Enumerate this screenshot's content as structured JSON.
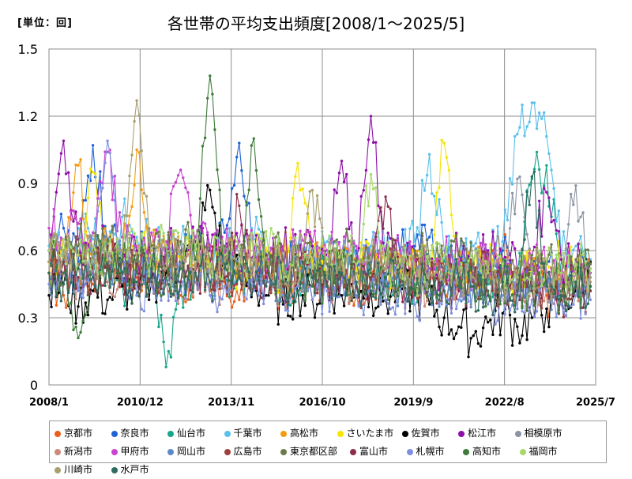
{
  "header": {
    "unit_label": "[単位：回]",
    "title": "各世帯の平均支出頻度[2008/1～2025/5]"
  },
  "chart_data": {
    "type": "line",
    "title": "各世帯の平均支出頻度[2008/1～2025/5]",
    "unit": "回",
    "ylim": [
      0,
      1.5
    ],
    "y_ticks": [
      "0",
      "0.3",
      "0.6",
      "0.9",
      "1.2",
      "1.5"
    ],
    "x_range": [
      "2008/1",
      "2025/7"
    ],
    "x_ticks": [
      "2008/1",
      "2010/12",
      "2013/11",
      "2016/10",
      "2019/9",
      "2022/8",
      "2025/7"
    ],
    "grid": true,
    "legend_position": "bottom",
    "series": [
      {
        "name": "京都市",
        "color": "#e8601c",
        "values": [
          0.5,
          0.4,
          0.55,
          0.45,
          0.6,
          0.5,
          0.48,
          0.52,
          0.45,
          0.4,
          0.5,
          0.42,
          0.46,
          0.38,
          0.55,
          0.5,
          0.4,
          0.48,
          0.52,
          0.44,
          0.55,
          0.4,
          0.5,
          0.45,
          0.52,
          0.58,
          0.48,
          0.42,
          0.5,
          0.46,
          0.55,
          0.6,
          0.45,
          0.5,
          0.4,
          0.48,
          0.52,
          0.44
        ]
      },
      {
        "name": "奈良市",
        "color": "#1f62d6",
        "values": [
          0.6,
          0.7,
          0.55,
          1.07,
          0.65,
          0.58,
          0.62,
          0.5,
          0.56,
          0.6,
          0.52,
          0.55,
          0.68,
          1.08,
          0.6,
          0.54,
          0.5,
          0.56,
          0.62,
          0.48,
          0.52,
          0.6,
          0.55,
          0.5,
          0.58,
          0.62,
          0.66,
          0.5,
          0.55,
          0.48,
          0.52,
          0.6,
          0.45,
          0.5,
          0.56,
          0.48,
          0.52,
          0.5
        ]
      },
      {
        "name": "仙台市",
        "color": "#17a589",
        "values": [
          0.5,
          0.55,
          0.48,
          0.6,
          0.52,
          0.45,
          0.5,
          0.58,
          0.08,
          0.44,
          0.5,
          0.55,
          0.48,
          0.52,
          0.46,
          0.5,
          0.44,
          0.48,
          0.52,
          0.5,
          0.46,
          0.55,
          0.5,
          0.48,
          0.52,
          0.45,
          0.5,
          0.55,
          0.48,
          0.52,
          0.45,
          0.5,
          0.48,
          0.92,
          0.98,
          0.5,
          0.46,
          0.52
        ]
      },
      {
        "name": "千葉市",
        "color": "#5bc0eb",
        "values": [
          0.62,
          0.58,
          0.7,
          0.65,
          0.6,
          0.75,
          0.66,
          0.62,
          0.58,
          0.64,
          0.6,
          0.55,
          0.62,
          0.58,
          0.65,
          0.6,
          0.56,
          0.62,
          0.58,
          0.64,
          0.6,
          0.55,
          0.62,
          0.6,
          0.58,
          0.64,
          1.03,
          0.6,
          0.56,
          0.62,
          0.58,
          0.64,
          1.12,
          1.26,
          1.11,
          0.58,
          0.62,
          0.56
        ]
      },
      {
        "name": "高松市",
        "color": "#f39c12",
        "values": [
          0.55,
          0.6,
          0.98,
          0.58,
          0.62,
          0.56,
          1.05,
          0.6,
          0.55,
          0.58,
          0.52,
          0.56,
          0.6,
          0.54,
          0.58,
          0.52,
          0.56,
          0.5,
          0.54,
          0.58,
          0.52,
          0.56,
          0.5,
          0.54,
          0.58,
          0.52,
          0.48,
          0.52,
          0.56,
          0.5,
          0.54,
          0.48,
          0.52,
          0.56,
          0.5,
          0.48,
          0.52,
          0.5
        ]
      },
      {
        "name": "さいたま市",
        "color": "#f7e400",
        "values": [
          0.55,
          0.6,
          0.52,
          0.95,
          0.58,
          0.54,
          0.6,
          0.56,
          0.52,
          0.58,
          0.54,
          0.5,
          0.56,
          0.52,
          0.58,
          0.54,
          0.5,
          0.99,
          0.54,
          0.5,
          0.56,
          0.52,
          0.58,
          0.54,
          0.5,
          0.56,
          0.52,
          1.08,
          0.54,
          0.5,
          0.56,
          0.52,
          0.48,
          0.54,
          0.5,
          0.56,
          0.52,
          0.5
        ]
      },
      {
        "name": "佐賀市",
        "color": "#000000",
        "values": [
          0.4,
          0.45,
          0.35,
          0.42,
          0.38,
          0.44,
          0.4,
          0.46,
          0.5,
          0.55,
          0.6,
          0.87,
          0.52,
          0.48,
          0.44,
          0.4,
          0.36,
          0.42,
          0.38,
          0.44,
          0.4,
          0.46,
          0.42,
          0.38,
          0.44,
          0.4,
          0.36,
          0.3,
          0.26,
          0.22,
          0.28,
          0.32,
          0.26,
          0.3,
          0.34,
          0.38,
          0.42,
          0.55
        ]
      },
      {
        "name": "松江市",
        "color": "#8e0fa8",
        "values": [
          0.6,
          1.09,
          0.65,
          0.58,
          0.62,
          0.55,
          0.6,
          0.56,
          0.62,
          0.58,
          0.64,
          0.6,
          0.56,
          0.62,
          0.58,
          0.54,
          0.6,
          0.56,
          0.62,
          0.58,
          1.0,
          0.56,
          1.2,
          0.58,
          0.54,
          0.6,
          0.56,
          0.52,
          0.58,
          0.54,
          0.6,
          0.56,
          0.52,
          0.58,
          0.86,
          0.56,
          0.52,
          0.54
        ]
      },
      {
        "name": "相模原市",
        "color": "#8c95a5",
        "values": [
          0.55,
          0.6,
          0.52,
          0.58,
          0.54,
          0.6,
          0.56,
          0.52,
          0.58,
          0.54,
          0.5,
          0.56,
          0.52,
          0.58,
          0.54,
          0.5,
          0.56,
          0.52,
          0.48,
          0.54,
          0.5,
          0.56,
          0.52,
          0.48,
          0.54,
          0.5,
          0.46,
          0.52,
          0.48,
          0.54,
          0.5,
          0.46,
          0.92,
          0.48,
          0.44,
          0.5,
          0.89,
          0.48
        ]
      },
      {
        "name": "新潟市",
        "color": "#c98a7a",
        "values": [
          0.5,
          0.55,
          0.48,
          0.52,
          0.46,
          0.5,
          0.54,
          0.48,
          0.52,
          0.46,
          0.5,
          0.44,
          0.48,
          0.52,
          0.46,
          0.5,
          0.44,
          0.48,
          0.52,
          0.46,
          0.5,
          0.44,
          0.48,
          0.52,
          0.46,
          0.42,
          0.48,
          0.52,
          0.46,
          0.42,
          0.48,
          0.44,
          0.4,
          0.46,
          0.42,
          0.48,
          0.44,
          0.46
        ]
      },
      {
        "name": "甲府市",
        "color": "#c944d0",
        "values": [
          0.7,
          0.65,
          0.72,
          0.68,
          1.04,
          0.66,
          0.62,
          0.68,
          0.64,
          0.96,
          0.66,
          0.62,
          0.58,
          0.64,
          0.6,
          0.56,
          0.62,
          0.58,
          0.64,
          0.6,
          0.56,
          0.62,
          0.58,
          0.54,
          0.6,
          0.56,
          0.52,
          0.58,
          0.54,
          0.5,
          0.56,
          0.52,
          0.48,
          0.54,
          0.5,
          0.46,
          0.52,
          0.5
        ]
      },
      {
        "name": "岡山市",
        "color": "#5b8ac9",
        "values": [
          0.5,
          0.55,
          0.48,
          0.52,
          0.58,
          0.5,
          0.54,
          0.48,
          0.52,
          0.56,
          0.5,
          0.46,
          0.52,
          0.48,
          0.54,
          0.5,
          0.46,
          0.52,
          0.48,
          0.44,
          0.5,
          0.46,
          0.52,
          0.48,
          0.44,
          0.5,
          0.46,
          0.42,
          0.48,
          0.44,
          0.5,
          0.46,
          0.42,
          0.48,
          0.44,
          0.4,
          0.46,
          0.44
        ]
      },
      {
        "name": "広島市",
        "color": "#a0403a",
        "values": [
          0.55,
          0.5,
          0.58,
          0.52,
          0.56,
          0.5,
          0.54,
          0.48,
          0.52,
          0.56,
          0.5,
          0.54,
          0.48,
          0.52,
          0.46,
          0.5,
          0.54,
          0.48,
          0.52,
          0.46,
          0.5,
          0.44,
          0.48,
          0.52,
          0.46,
          0.5,
          0.44,
          0.48,
          0.42,
          0.46,
          0.5,
          0.44,
          0.48,
          0.42,
          0.46,
          0.4,
          0.44,
          0.42
        ]
      },
      {
        "name": "東京都区部",
        "color": "#6b7a4a",
        "values": [
          0.6,
          0.55,
          0.62,
          0.58,
          0.64,
          0.6,
          0.56,
          0.62,
          0.58,
          0.64,
          0.6,
          0.56,
          0.62,
          0.58,
          0.54,
          0.6,
          0.56,
          0.62,
          0.58,
          0.54,
          0.6,
          0.56,
          0.52,
          0.58,
          0.54,
          0.6,
          0.56,
          0.52,
          0.58,
          0.54,
          0.5,
          0.56,
          0.52,
          0.58,
          0.54,
          0.5,
          0.56,
          0.54
        ]
      },
      {
        "name": "富山市",
        "color": "#8c2f4a",
        "values": [
          0.5,
          0.55,
          0.48,
          0.52,
          0.56,
          0.5,
          0.54,
          0.48,
          0.52,
          0.46,
          0.5,
          0.54,
          0.48,
          0.8,
          0.46,
          0.5,
          0.44,
          0.48,
          0.52,
          0.46,
          0.5,
          0.44,
          0.48,
          0.84,
          0.46,
          0.5,
          0.44,
          0.48,
          0.42,
          0.46,
          0.5,
          0.44,
          0.48,
          0.42,
          0.46,
          0.4,
          0.44,
          0.42
        ]
      },
      {
        "name": "札幌市",
        "color": "#7f8fe0",
        "values": [
          0.45,
          0.5,
          0.42,
          0.48,
          1.09,
          0.46,
          0.4,
          0.44,
          0.48,
          0.42,
          0.46,
          0.4,
          0.44,
          0.48,
          0.42,
          0.46,
          0.4,
          0.44,
          0.38,
          0.42,
          0.46,
          0.4,
          0.44,
          0.38,
          0.42,
          0.36,
          0.4,
          0.44,
          0.38,
          0.42,
          0.36,
          0.4,
          0.34,
          0.38,
          0.42,
          0.36,
          0.4,
          0.38
        ]
      },
      {
        "name": "高知市",
        "color": "#3f7a3a",
        "values": [
          0.55,
          0.5,
          0.21,
          0.58,
          0.52,
          0.56,
          0.5,
          0.54,
          0.48,
          0.52,
          0.56,
          1.38,
          0.54,
          0.48,
          1.1,
          0.52,
          0.46,
          0.5,
          0.44,
          0.48,
          0.52,
          0.46,
          0.5,
          0.44,
          0.48,
          0.42,
          0.46,
          0.5,
          0.44,
          0.48,
          0.42,
          0.46,
          0.4,
          0.44,
          0.48,
          0.42,
          0.46,
          0.44
        ]
      },
      {
        "name": "福岡市",
        "color": "#a6d96a",
        "values": [
          0.6,
          0.65,
          0.58,
          0.62,
          0.56,
          0.6,
          0.64,
          0.58,
          0.62,
          0.56,
          0.6,
          0.54,
          0.58,
          0.62,
          0.56,
          0.6,
          0.54,
          0.58,
          0.52,
          0.56,
          0.6,
          0.54,
          0.94,
          0.52,
          0.56,
          0.5,
          0.54,
          0.58,
          0.52,
          0.56,
          0.5,
          0.54,
          0.48,
          0.52,
          0.56,
          0.5,
          0.54,
          0.52
        ]
      },
      {
        "name": "川崎市",
        "color": "#a8a070",
        "values": [
          0.55,
          0.6,
          0.52,
          0.58,
          0.54,
          0.6,
          1.27,
          0.56,
          0.52,
          0.58,
          0.54,
          0.5,
          0.56,
          0.52,
          0.58,
          0.54,
          0.5,
          0.56,
          0.87,
          0.48,
          0.54,
          0.5,
          0.56,
          0.52,
          0.48,
          0.54,
          0.5,
          0.46,
          0.52,
          0.48,
          0.54,
          0.5,
          0.46,
          0.52,
          0.48,
          0.44,
          0.5,
          0.48
        ]
      },
      {
        "name": "水戸市",
        "color": "#2e6b5e",
        "values": [
          0.5,
          0.45,
          0.52,
          0.48,
          0.54,
          0.5,
          0.46,
          0.52,
          0.48,
          0.44,
          0.5,
          0.46,
          0.52,
          0.48,
          0.44,
          0.5,
          0.46,
          0.42,
          0.48,
          0.44,
          0.5,
          0.46,
          0.42,
          0.48,
          0.44,
          0.4,
          0.46,
          0.42,
          0.48,
          0.44,
          0.4,
          0.46,
          0.42,
          0.93,
          0.44,
          0.4,
          0.46,
          0.44
        ]
      }
    ]
  }
}
